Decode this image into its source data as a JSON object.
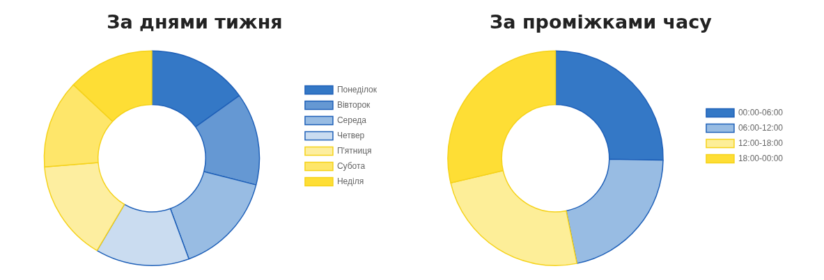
{
  "chart_data": [
    {
      "type": "donut",
      "title": "За днями тижня",
      "categories": [
        "Понеділок",
        "Вівторок",
        "Середа",
        "Четвер",
        "П'ятниця",
        "Субота",
        "Неділя"
      ],
      "values": [
        15.1,
        13.9,
        15.4,
        14.1,
        15.2,
        13.3,
        13.0
      ],
      "colors": [
        "#3478c6",
        "#6598d3",
        "#98bce3",
        "#cadcf0",
        "#fdeea0",
        "#fee66a",
        "#fede35"
      ],
      "legend": "right"
    },
    {
      "type": "donut",
      "title": "За проміжками часу",
      "categories": [
        "00:00-06:00",
        "06:00-12:00",
        "12:00-18:00",
        "18:00-00:00"
      ],
      "values": [
        25.3,
        21.5,
        24.5,
        28.7
      ],
      "colors": [
        "#3478c6",
        "#98bce3",
        "#fdee98",
        "#fede35"
      ],
      "legend": "right"
    }
  ]
}
